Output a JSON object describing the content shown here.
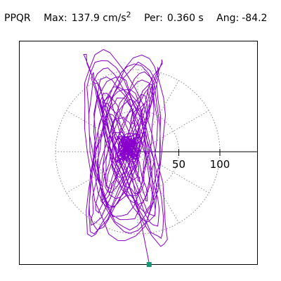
{
  "header": {
    "station": "PPQR",
    "max_label": "Max:",
    "max_value": "137.9 cm/s",
    "max_exp": "2",
    "per_label": "Per:",
    "per_value": "0.360 s",
    "ang_label": "Ang:",
    "ang_value": "-84.2"
  },
  "colors": {
    "trace": "#8800cc",
    "marker": "#119977",
    "grid": "#888888"
  },
  "chart_data": {
    "type": "scatter",
    "coordinate_system": "polar",
    "radial_ticks": [
      50,
      100
    ],
    "radial_max": 150,
    "angular_grid_deg": 30,
    "grid": "dotted",
    "max": 137.9,
    "period_s": 0.36,
    "angle_deg": -84.2,
    "end_marker": {
      "x": 13.9,
      "y": -137.2
    }
  }
}
